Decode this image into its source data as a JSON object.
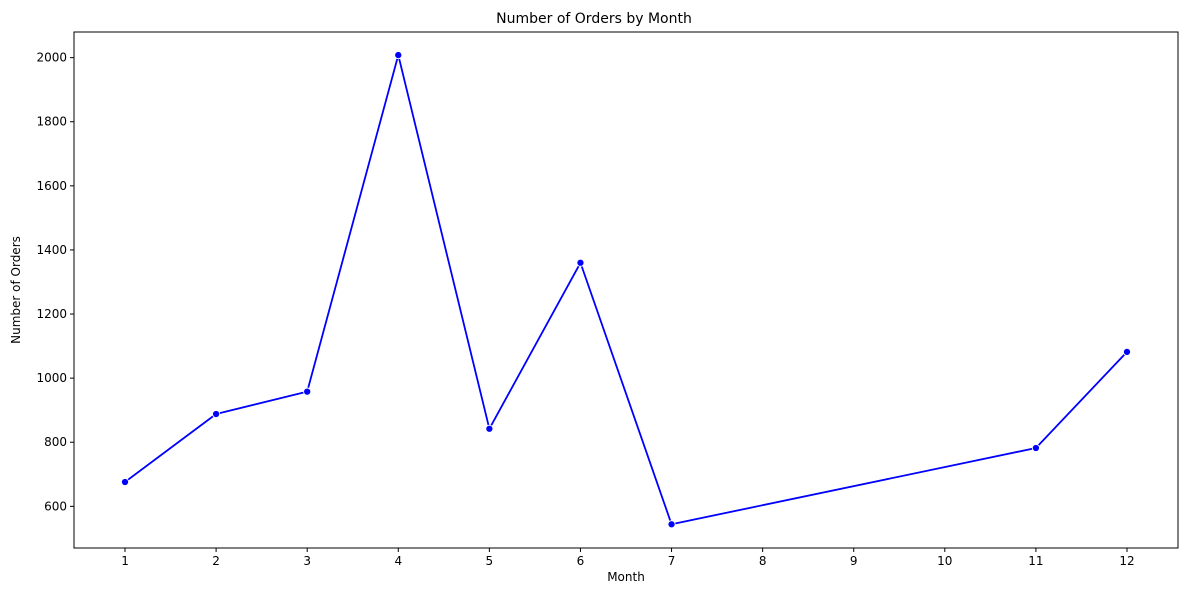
{
  "chart_data": {
    "type": "line",
    "title": "Number of Orders by Month",
    "xlabel": "Month",
    "ylabel": "Number of Orders",
    "x_ticks": [
      1,
      2,
      3,
      4,
      5,
      6,
      7,
      8,
      9,
      10,
      11,
      12
    ],
    "y_ticks": [
      600,
      800,
      1000,
      1200,
      1400,
      1600,
      1800,
      2000
    ],
    "xlim": [
      0.44,
      12.56
    ],
    "ylim": [
      470,
      2080
    ],
    "grid": false,
    "series": [
      {
        "color": "#0000ff",
        "marker": "circle",
        "x": [
          1,
          2,
          3,
          4,
          5,
          6,
          7,
          11,
          12
        ],
        "y": [
          676,
          888,
          958,
          2008,
          842,
          1360,
          544,
          782,
          1082
        ]
      }
    ]
  }
}
